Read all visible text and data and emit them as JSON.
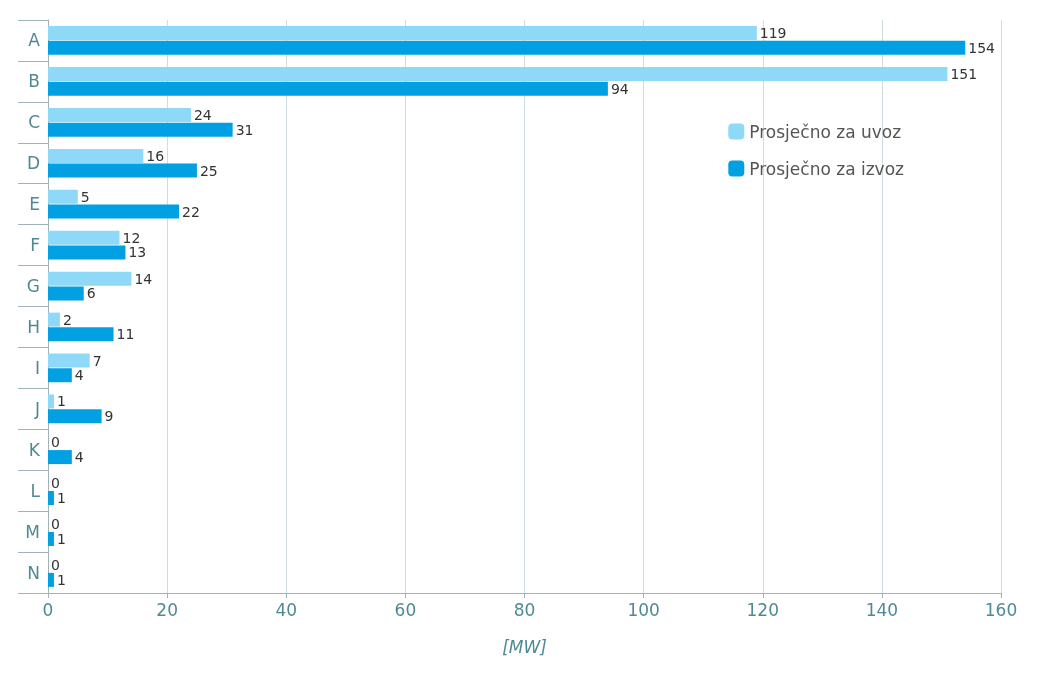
{
  "chart_data": {
    "type": "bar",
    "orientation": "horizontal",
    "xlabel": "[MW]",
    "categories": [
      "A",
      "B",
      "C",
      "D",
      "E",
      "F",
      "G",
      "H",
      "I",
      "J",
      "K",
      "L",
      "M",
      "N"
    ],
    "series": [
      {
        "name": "Prosječno za uvoz",
        "color": "#8ed8f8",
        "values": [
          119,
          151,
          24,
          16,
          5,
          12,
          14,
          2,
          7,
          1,
          0,
          0,
          0,
          0
        ]
      },
      {
        "name": "Prosječno za izvoz",
        "color": "#00a0e3",
        "values": [
          154,
          94,
          31,
          25,
          22,
          13,
          6,
          11,
          4,
          9,
          4,
          1,
          1,
          1
        ]
      }
    ],
    "xlim": [
      0,
      160
    ],
    "xticks": [
      0,
      20,
      40,
      60,
      80,
      100,
      120,
      140,
      160
    ],
    "grid": "x",
    "legend": "top right",
    "data_labels": true
  }
}
